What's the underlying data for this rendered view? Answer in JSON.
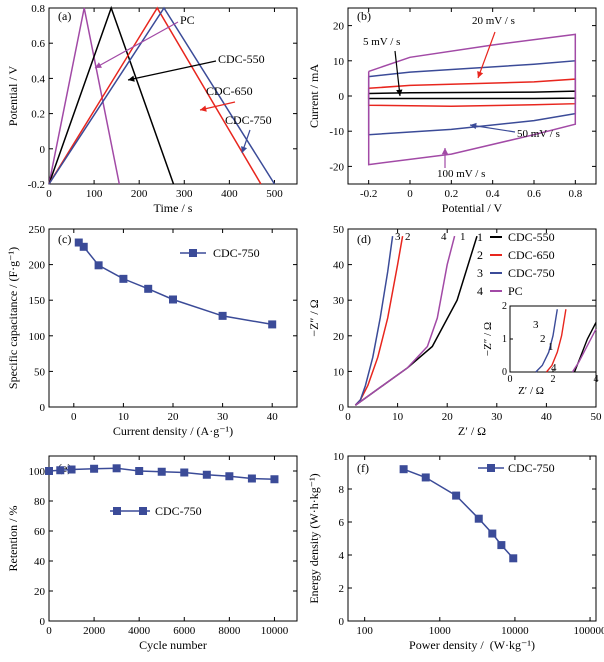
{
  "figure": {
    "colors": {
      "black": "#000000",
      "red": "#e8261e",
      "blue": "#3b4b98",
      "magenta": "#a24aa6"
    }
  },
  "chart_data": [
    {
      "panel": "a",
      "type": "line",
      "panel_label": "(a)",
      "xlabel": "Time / s",
      "ylabel": "Potential / V",
      "xlim": [
        0,
        550
      ],
      "ylim": [
        -0.2,
        0.8
      ],
      "xticks": [
        "0",
        "100",
        "200",
        "300",
        "400",
        "500"
      ],
      "yticks": [
        "-0.2",
        "0",
        "0.2",
        "0.4",
        "0.6",
        "0.8"
      ],
      "series": [
        {
          "name": "PC",
          "color": "#a24aa6",
          "points": [
            [
              0,
              -0.2
            ],
            [
              78,
              0.8
            ],
            [
              156,
              -0.2
            ]
          ]
        },
        {
          "name": "CDC-550",
          "color": "#000000",
          "points": [
            [
              0,
              -0.2
            ],
            [
              138,
              0.8
            ],
            [
              276,
              -0.2
            ]
          ]
        },
        {
          "name": "CDC-650",
          "color": "#e8261e",
          "points": [
            [
              0,
              -0.2
            ],
            [
              240,
              0.8
            ],
            [
              470,
              -0.2
            ]
          ]
        },
        {
          "name": "CDC-750",
          "color": "#3b4b98",
          "points": [
            [
              0,
              -0.2
            ],
            [
              255,
              0.8
            ],
            [
              500,
              -0.2
            ]
          ]
        }
      ]
    },
    {
      "panel": "b",
      "type": "line",
      "panel_label": "(b)",
      "xlabel": "Potential / V",
      "ylabel": "Current / mA",
      "xlim": [
        -0.3,
        0.9
      ],
      "ylim": [
        -25,
        25
      ],
      "xticks": [
        "-0.2",
        "0",
        "0.2",
        "0.4",
        "0.6",
        "0.8"
      ],
      "yticks": [
        "-20",
        "-10",
        "0",
        "10",
        "20"
      ],
      "annotations": [
        "5 mV / s",
        "20 mV / s",
        "50 mV / s",
        "100 mV / s"
      ],
      "series": [
        {
          "name": "5 mV / s",
          "color": "#000000",
          "upper": [
            [
              -0.2,
              0.7
            ],
            [
              0.0,
              0.9
            ],
            [
              0.6,
              1.1
            ],
            [
              0.8,
              1.4
            ]
          ],
          "lower": [
            [
              -0.2,
              -0.7
            ],
            [
              0.6,
              -0.7
            ],
            [
              0.8,
              -0.6
            ]
          ]
        },
        {
          "name": "20 mV / s",
          "color": "#e8261e",
          "upper": [
            [
              -0.2,
              2.2
            ],
            [
              0.0,
              3.0
            ],
            [
              0.6,
              4.0
            ],
            [
              0.8,
              4.8
            ]
          ],
          "lower": [
            [
              -0.2,
              -2.6
            ],
            [
              0.2,
              -2.9
            ],
            [
              0.6,
              -2.5
            ],
            [
              0.8,
              -2.2
            ]
          ]
        },
        {
          "name": "50 mV / s",
          "color": "#3b4b98",
          "upper": [
            [
              -0.2,
              5.5
            ],
            [
              0.0,
              6.8
            ],
            [
              0.6,
              9.0
            ],
            [
              0.8,
              10.0
            ]
          ],
          "lower": [
            [
              -0.2,
              -11.0
            ],
            [
              0.2,
              -9.5
            ],
            [
              0.6,
              -7.0
            ],
            [
              0.8,
              -5.0
            ]
          ]
        },
        {
          "name": "100 mV / s",
          "color": "#a24aa6",
          "upper": [
            [
              -0.2,
              7.0
            ],
            [
              0.0,
              11.0
            ],
            [
              0.4,
              14.5
            ],
            [
              0.8,
              17.5
            ]
          ],
          "lower": [
            [
              -0.2,
              -19.5
            ],
            [
              0.2,
              -16.5
            ],
            [
              0.6,
              -11.0
            ],
            [
              0.8,
              -8.0
            ]
          ]
        }
      ]
    },
    {
      "panel": "c",
      "type": "line",
      "panel_label": "(c)",
      "xlabel": "Current density / (A·g⁻¹)",
      "ylabel": "Specific capacitance / (F·g⁻¹)",
      "xlim": [
        -5,
        45
      ],
      "ylim": [
        0,
        250
      ],
      "xticks": [
        "0",
        "10",
        "20",
        "30",
        "40"
      ],
      "yticks": [
        "0",
        "50",
        "100",
        "150",
        "200",
        "250"
      ],
      "legend": "CDC-750",
      "series": [
        {
          "name": "CDC-750",
          "color": "#3b4b98",
          "x": [
            1,
            2,
            5,
            10,
            15,
            20,
            30,
            40
          ],
          "y": [
            231,
            225,
            199,
            180,
            166,
            151,
            128,
            116
          ]
        }
      ]
    },
    {
      "panel": "d",
      "type": "line",
      "panel_label": "(d)",
      "xlabel": "Z′ / Ω",
      "ylabel": "−Z″ / Ω",
      "xlim": [
        0,
        50
      ],
      "ylim": [
        0,
        50
      ],
      "xticks": [
        "0",
        "10",
        "20",
        "30",
        "40",
        "50"
      ],
      "yticks": [
        "0",
        "10",
        "20",
        "30",
        "40",
        "50"
      ],
      "legend": [
        {
          "num": "1",
          "name": "CDC-550",
          "color": "#000000"
        },
        {
          "num": "2",
          "name": "CDC-650",
          "color": "#e8261e"
        },
        {
          "num": "3",
          "name": "CDC-750",
          "color": "#3b4b98"
        },
        {
          "num": "4",
          "name": "PC",
          "color": "#a24aa6"
        }
      ],
      "curve_labels": [
        "3",
        "2",
        "4",
        "1"
      ],
      "series": [
        {
          "name": "CDC-550",
          "color": "#000000",
          "points": [
            [
              1.5,
              0.5
            ],
            [
              3,
              2
            ],
            [
              7,
              6
            ],
            [
              12,
              11
            ],
            [
              17,
              17
            ],
            [
              22,
              30
            ],
            [
              26,
              48
            ]
          ]
        },
        {
          "name": "CDC-650",
          "color": "#e8261e",
          "points": [
            [
              1.5,
              0.5
            ],
            [
              2.5,
              2
            ],
            [
              4,
              6
            ],
            [
              6,
              14
            ],
            [
              8,
              25
            ],
            [
              10,
              40
            ],
            [
              11,
              48
            ]
          ]
        },
        {
          "name": "CDC-750",
          "color": "#3b4b98",
          "points": [
            [
              1.5,
              0.5
            ],
            [
              2.5,
              2
            ],
            [
              3.5,
              6
            ],
            [
              5,
              14
            ],
            [
              6.5,
              25
            ],
            [
              8,
              38
            ],
            [
              9,
              48
            ]
          ]
        },
        {
          "name": "PC",
          "color": "#a24aa6",
          "points": [
            [
              1.5,
              0.5
            ],
            [
              3,
              2
            ],
            [
              7,
              6
            ],
            [
              12,
              11
            ],
            [
              16,
              17
            ],
            [
              18,
              25
            ],
            [
              20,
              40
            ],
            [
              21.5,
              48
            ]
          ]
        }
      ],
      "inset": {
        "xlabel": "Z′ / Ω",
        "ylabel": "−Z″ / Ω",
        "xlim": [
          0,
          4
        ],
        "ylim": [
          0,
          2
        ],
        "xticks": [
          "0",
          "2",
          "4"
        ],
        "yticks": [
          "0",
          "1",
          "2"
        ],
        "curve_labels": [
          "3",
          "2",
          "1",
          "4"
        ],
        "series": [
          {
            "name": "CDC-550",
            "color": "#000000",
            "points": [
              [
                3.0,
                0.0
              ],
              [
                3.3,
                0.5
              ],
              [
                3.6,
                1.0
              ],
              [
                4.0,
                1.5
              ]
            ]
          },
          {
            "name": "CDC-650",
            "color": "#e8261e",
            "points": [
              [
                1.7,
                0.0
              ],
              [
                1.95,
                0.2
              ],
              [
                2.2,
                0.6
              ],
              [
                2.4,
                1.1
              ],
              [
                2.6,
                1.9
              ]
            ]
          },
          {
            "name": "CDC-750",
            "color": "#3b4b98",
            "points": [
              [
                1.2,
                0.0
              ],
              [
                1.5,
                0.2
              ],
              [
                1.8,
                0.6
              ],
              [
                2.0,
                1.1
              ],
              [
                2.2,
                1.9
              ]
            ]
          },
          {
            "name": "PC",
            "color": "#a24aa6",
            "points": [
              [
                2.9,
                0.0
              ],
              [
                3.2,
                0.3
              ],
              [
                3.6,
                0.8
              ],
              [
                4.0,
                1.3
              ]
            ]
          }
        ]
      }
    },
    {
      "panel": "e",
      "type": "line",
      "panel_label": "(e)",
      "xlabel": "Cycle number",
      "ylabel": "Retention / %",
      "xlim": [
        0,
        11000
      ],
      "ylim": [
        0,
        110
      ],
      "xticks": [
        "0",
        "2000",
        "4000",
        "6000",
        "8000",
        "10000"
      ],
      "yticks": [
        "0",
        "20",
        "40",
        "60",
        "80",
        "100"
      ],
      "legend": "CDC-750",
      "series": [
        {
          "name": "CDC-750",
          "color": "#3b4b98",
          "x": [
            0,
            500,
            1000,
            2000,
            3000,
            4000,
            5000,
            6000,
            7000,
            8000,
            9000,
            10000
          ],
          "y": [
            100,
            100.5,
            101,
            101.5,
            101.8,
            100,
            99.5,
            99,
            97.5,
            96.5,
            95,
            94.5
          ]
        }
      ]
    },
    {
      "panel": "f",
      "type": "line",
      "panel_label": "(f)",
      "xlabel": "Power density /  (W·kg⁻¹)",
      "ylabel": "Energy density (W·h·kg⁻¹)",
      "xscale": "log",
      "xlim": [
        60,
        120000
      ],
      "ylim": [
        0,
        10
      ],
      "xticks": [
        "100",
        "1000",
        "10000",
        "100000"
      ],
      "yticks": [
        "0",
        "2",
        "4",
        "6",
        "8",
        "10"
      ],
      "legend": "CDC-750",
      "series": [
        {
          "name": "CDC-750",
          "color": "#3b4b98",
          "x": [
            330,
            650,
            1650,
            3300,
            5000,
            6600,
            9500
          ],
          "y": [
            9.2,
            8.7,
            7.6,
            6.2,
            5.3,
            4.6,
            3.8
          ]
        }
      ]
    }
  ]
}
